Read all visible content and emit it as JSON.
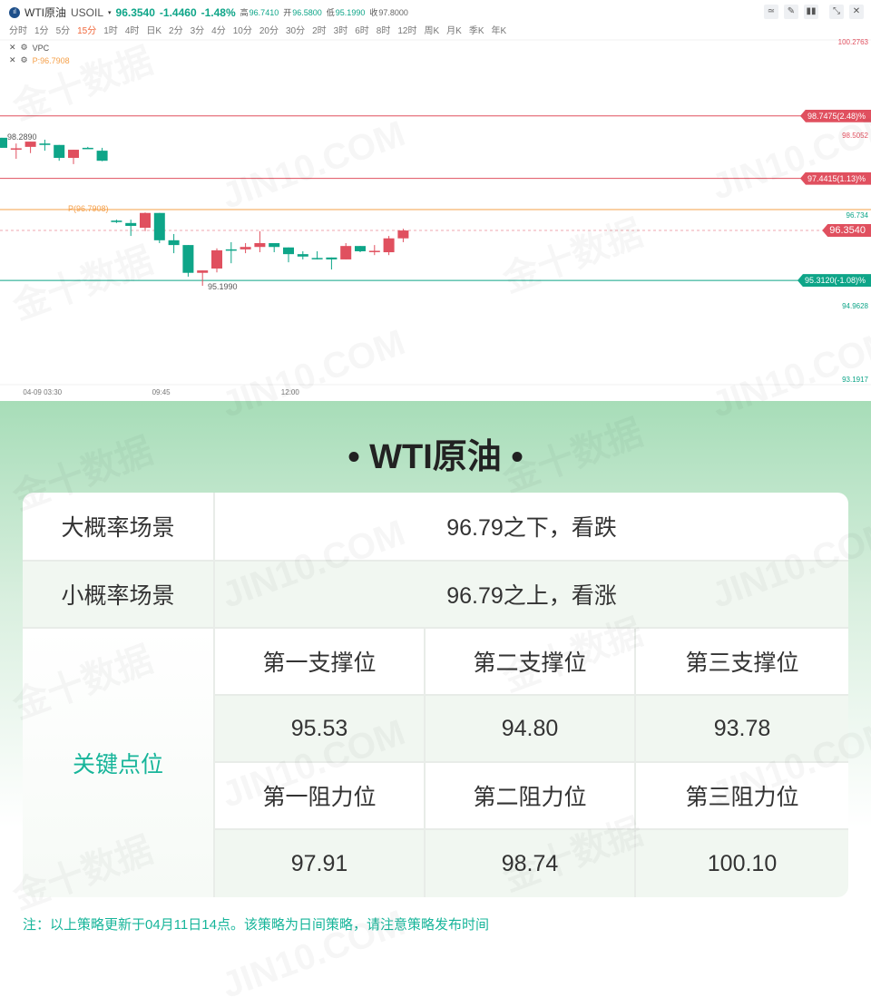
{
  "header": {
    "symbol": "WTI原油",
    "code": "USOIL",
    "price": "96.3540",
    "change": "-1.4460",
    "change_pct": "-1.48%",
    "high_label": "高",
    "high": "96.7410",
    "open_label": "开",
    "open": "96.5800",
    "low_label": "低",
    "low": "95.1990",
    "close_label": "收",
    "close": "97.8000"
  },
  "timeframes": [
    "分时",
    "1分",
    "5分",
    "15分",
    "1时",
    "4时",
    "日K",
    "2分",
    "3分",
    "4分",
    "10分",
    "20分",
    "30分",
    "2时",
    "3时",
    "6时",
    "8时",
    "12时",
    "周K",
    "月K",
    "季K",
    "年K"
  ],
  "active_timeframe": "15分",
  "indicators": [
    {
      "label": "VPC"
    },
    {
      "label": "P:96.7908"
    }
  ],
  "toolbar": [
    "indicator-icon",
    "draw-icon",
    "candle-type-icon",
    "collapse-icon",
    "close-icon"
  ],
  "colors": {
    "up": "#e0505f",
    "down": "#0ea588",
    "pivot": "#f5a04a"
  },
  "chart_data": {
    "type": "candlestick",
    "x_labels": [
      {
        "index": 3,
        "text": "04-09 03:30"
      },
      {
        "index": 12,
        "text": "09:45"
      },
      {
        "index": 21,
        "text": "12:00"
      }
    ],
    "ylim": [
      93.1917,
      100.2763
    ],
    "y_axis_labels": [
      {
        "value": 100.2763,
        "text": "100.2763",
        "color": "#e0505f"
      },
      {
        "value": 98.5052,
        "text": "98.5052",
        "color": "#e0505f"
      },
      {
        "value": 96.734,
        "text": "96.734",
        "color": "#0ea588"
      },
      {
        "value": 94.9628,
        "text": "94.9628",
        "color": "#0ea588"
      },
      {
        "value": 93.1917,
        "text": "93.1917",
        "color": "#0ea588"
      }
    ],
    "candles": [
      [
        98.29,
        98.29,
        98.08,
        98.08
      ],
      [
        98.06,
        98.17,
        97.85,
        98.07
      ],
      [
        98.1,
        98.21,
        97.97,
        98.21
      ],
      [
        98.17,
        98.25,
        98.02,
        98.14
      ],
      [
        98.14,
        98.14,
        97.81,
        97.87
      ],
      [
        97.87,
        98.04,
        97.74,
        98.04
      ],
      [
        98.08,
        98.1,
        98.06,
        98.07
      ],
      [
        98.02,
        98.08,
        97.8,
        97.81
      ],
      [
        96.56,
        96.58,
        96.51,
        96.53
      ],
      [
        96.51,
        96.58,
        96.24,
        96.45
      ],
      [
        96.41,
        96.73,
        96.34,
        96.72
      ],
      [
        96.72,
        96.72,
        96.09,
        96.15
      ],
      [
        96.15,
        96.28,
        95.88,
        96.05
      ],
      [
        96.05,
        96.05,
        95.39,
        95.47
      ],
      [
        95.47,
        95.52,
        95.199,
        95.52
      ],
      [
        95.56,
        95.98,
        95.48,
        95.94
      ],
      [
        95.96,
        96.11,
        95.67,
        95.95
      ],
      [
        95.96,
        96.09,
        95.88,
        96.01
      ],
      [
        96.01,
        96.34,
        95.9,
        96.09
      ],
      [
        96.09,
        96.09,
        95.9,
        96.01
      ],
      [
        96.0,
        96.0,
        95.69,
        95.86
      ],
      [
        95.86,
        95.92,
        95.75,
        95.81
      ],
      [
        95.78,
        95.92,
        95.75,
        95.77
      ],
      [
        95.79,
        95.79,
        95.54,
        95.75
      ],
      [
        95.75,
        96.09,
        95.75,
        96.03
      ],
      [
        96.03,
        96.03,
        95.9,
        95.92
      ],
      [
        95.92,
        96.05,
        95.84,
        95.93
      ],
      [
        95.9,
        96.24,
        95.84,
        96.19
      ],
      [
        96.19,
        96.39,
        96.11,
        96.354
      ]
    ],
    "annotations": {
      "high_mark": "98.2890",
      "low_mark": "95.1990",
      "pivot_label": "P(96.7908)"
    },
    "levels": [
      {
        "value": 98.7475,
        "text": "98.7475(2.48)%",
        "color": "#e0505f"
      },
      {
        "value": 97.4415,
        "text": "97.4415(1.13)%",
        "color": "#e0505f"
      },
      {
        "value": 96.7908,
        "text": "",
        "color": "#f5a04a"
      },
      {
        "value": 96.354,
        "text": "96.3540",
        "color": "#e0505f",
        "dashed": true
      },
      {
        "value": 95.312,
        "text": "95.3120(-1.08)%",
        "color": "#0ea588"
      }
    ]
  },
  "strategy": {
    "title": "• WTI原油 •",
    "rows": [
      {
        "label": "大概率场景",
        "value": "96.79之下，看跌"
      },
      {
        "label": "小概率场景",
        "value": "96.79之上，看涨"
      }
    ],
    "key_label": "关键点位",
    "support_headers": [
      "第一支撑位",
      "第二支撑位",
      "第三支撑位"
    ],
    "supports": [
      "95.53",
      "94.80",
      "93.78"
    ],
    "resistance_headers": [
      "第一阻力位",
      "第二阻力位",
      "第三阻力位"
    ],
    "resistances": [
      "97.91",
      "98.74",
      "100.10"
    ],
    "note": "注：以上策略更新于04月11日14点。该策略为日间策略，请注意策略发布时间"
  },
  "watermarks": [
    "金十数据",
    "JIN10.COM"
  ]
}
